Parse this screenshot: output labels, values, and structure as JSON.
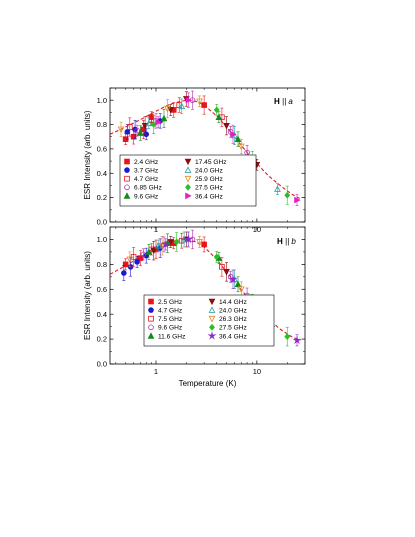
{
  "chart_data": [
    {
      "type": "scatter",
      "panel": "top",
      "annotation_bold": "H",
      "annotation_rest": " || a",
      "ylabel": "ESR Intensity (arb. units)",
      "xlabel": "",
      "xscale": "log",
      "xlim": [
        0.35,
        30
      ],
      "ylim": [
        0.0,
        1.1
      ],
      "yticks": [
        "0.0",
        "0.2",
        "0.4",
        "0.6",
        "0.8",
        "1.0"
      ],
      "ytick_values": [
        0.0,
        0.2,
        0.4,
        0.6,
        0.8,
        1.0
      ],
      "xticks": [
        "1",
        "10"
      ],
      "xtick_values": [
        1,
        10
      ],
      "fit_curve": {
        "style": "dashed",
        "color": "#d4202a",
        "x": [
          0.35,
          0.5,
          0.7,
          1.0,
          1.4,
          2.0,
          2.5,
          3.0,
          4.0,
          5.0,
          6.0,
          8.0,
          10.0,
          13.0,
          17.0,
          22.0,
          27.0
        ],
        "y": [
          0.72,
          0.78,
          0.84,
          0.91,
          0.97,
          1.0,
          0.99,
          0.96,
          0.87,
          0.78,
          0.7,
          0.57,
          0.48,
          0.38,
          0.3,
          0.23,
          0.19
        ]
      },
      "series": [
        {
          "name": "2.4 GHz",
          "color": "#e8141b",
          "marker": "square",
          "filled": true,
          "x": [
            0.5,
            0.6,
            0.75,
            0.9,
            1.5,
            3.0
          ],
          "y": [
            0.68,
            0.7,
            0.76,
            0.86,
            0.92,
            0.96
          ]
        },
        {
          "name": "3.7 GHz",
          "color": "#1a1ad6",
          "marker": "circle",
          "filled": true,
          "x": [
            0.52,
            0.62,
            0.8,
            1.1
          ],
          "y": [
            0.74,
            0.76,
            0.72,
            0.83
          ]
        },
        {
          "name": "4.7 GHz",
          "color": "#e8141b",
          "marker": "square",
          "filled": false,
          "x": [
            0.55,
            0.9,
            1.7,
            4.5
          ],
          "y": [
            0.78,
            0.84,
            0.96,
            0.86
          ]
        },
        {
          "name": "6.85 GHz",
          "color": "#b030b0",
          "marker": "circle",
          "filled": false,
          "x": [
            0.65,
            1.0,
            2.3,
            5.5,
            8.0
          ],
          "y": [
            0.75,
            0.83,
            1.0,
            0.74,
            0.57
          ]
        },
        {
          "name": "9.6 GHz",
          "color": "#138a1c",
          "marker": "triangle-up",
          "filled": true,
          "x": [
            0.7,
            1.2,
            4.2,
            6.5
          ],
          "y": [
            0.73,
            0.85,
            0.86,
            0.68
          ]
        },
        {
          "name": "17.45 GHz",
          "color": "#8b0f0f",
          "marker": "triangle-down",
          "filled": true,
          "x": [
            0.78,
            1.4,
            2.0,
            5.0,
            10.0
          ],
          "y": [
            0.79,
            0.92,
            1.01,
            0.79,
            0.47
          ]
        },
        {
          "name": "24.0 GHz",
          "color": "#22a0a0",
          "marker": "triangle-up",
          "filled": false,
          "x": [
            0.85,
            1.8,
            6.0,
            16.0
          ],
          "y": [
            0.81,
            0.95,
            0.71,
            0.27
          ]
        },
        {
          "name": "25.9 GHz",
          "color": "#e08820",
          "marker": "triangle-down",
          "filled": false,
          "x": [
            0.45,
            1.3,
            2.7,
            7.0
          ],
          "y": [
            0.76,
            0.93,
            0.99,
            0.62
          ]
        },
        {
          "name": "27.5 GHz",
          "color": "#28c028",
          "marker": "diamond",
          "filled": true,
          "x": [
            0.95,
            4.0,
            9.0,
            20.0
          ],
          "y": [
            0.8,
            0.92,
            0.52,
            0.22
          ]
        },
        {
          "name": "36.4 GHz",
          "color": "#e020c0",
          "marker": "triangle-right",
          "filled": true,
          "x": [
            1.05,
            2.1,
            5.8,
            25.0
          ],
          "y": [
            0.82,
            1.0,
            0.72,
            0.18
          ]
        }
      ],
      "legend_location": "lower-left"
    },
    {
      "type": "scatter",
      "panel": "bottom",
      "annotation_bold": "H",
      "annotation_rest": " || b",
      "ylabel": "ESR Intensity (arb. units)",
      "xlabel": "Temperature (K)",
      "xscale": "log",
      "xlim": [
        0.35,
        30
      ],
      "ylim": [
        0.0,
        1.1
      ],
      "yticks": [
        "0.0",
        "0.2",
        "0.4",
        "0.6",
        "0.8",
        "1.0"
      ],
      "ytick_values": [
        0.0,
        0.2,
        0.4,
        0.6,
        0.8,
        1.0
      ],
      "xticks": [
        "1",
        "10"
      ],
      "xtick_values": [
        1,
        10
      ],
      "fit_curve": {
        "style": "dashed",
        "color": "#d4202a",
        "x": [
          0.35,
          0.5,
          0.7,
          1.0,
          1.4,
          2.0,
          2.5,
          3.0,
          4.0,
          5.0,
          6.0,
          8.0,
          10.0,
          13.0,
          17.0,
          22.0,
          27.0
        ],
        "y": [
          0.72,
          0.79,
          0.86,
          0.94,
          0.99,
          1.0,
          0.98,
          0.94,
          0.84,
          0.74,
          0.66,
          0.54,
          0.45,
          0.36,
          0.28,
          0.22,
          0.19
        ]
      },
      "series": [
        {
          "name": "2.5 GHz",
          "color": "#e8141b",
          "marker": "square",
          "filled": true,
          "x": [
            0.5,
            0.7,
            1.0,
            1.5,
            3.0
          ],
          "y": [
            0.8,
            0.85,
            0.92,
            0.97,
            0.96
          ]
        },
        {
          "name": "4.7 GHz",
          "color": "#1a1ad6",
          "marker": "circle",
          "filled": true,
          "x": [
            0.48,
            0.56,
            0.65,
            0.8,
            1.1
          ],
          "y": [
            0.73,
            0.78,
            0.82,
            0.87,
            0.93
          ]
        },
        {
          "name": "7.5 GHz",
          "color": "#e8141b",
          "marker": "square",
          "filled": false,
          "x": [
            0.6,
            0.9,
            1.8,
            4.5
          ],
          "y": [
            0.86,
            0.92,
            0.99,
            0.78
          ]
        },
        {
          "name": "9.6 GHz",
          "color": "#b030b0",
          "marker": "circle",
          "filled": false,
          "x": [
            0.75,
            1.2,
            2.3,
            5.5,
            8.0
          ],
          "y": [
            0.88,
            0.96,
            1.0,
            0.7,
            0.55
          ]
        },
        {
          "name": "11.6 GHz",
          "color": "#138a1c",
          "marker": "triangle-up",
          "filled": true,
          "x": [
            0.85,
            1.3,
            4.2,
            6.5
          ],
          "y": [
            0.9,
            0.97,
            0.85,
            0.64
          ]
        },
        {
          "name": "14.4 GHz",
          "color": "#8b0f0f",
          "marker": "triangle-down",
          "filled": true,
          "x": [
            0.95,
            1.4,
            2.0,
            5.0,
            10.0
          ],
          "y": [
            0.91,
            0.98,
            1.0,
            0.74,
            0.45
          ]
        },
        {
          "name": "24.0 GHz",
          "color": "#22a0a0",
          "marker": "triangle-up",
          "filled": false,
          "x": [
            1.05,
            1.9,
            6.0,
            14.0
          ],
          "y": [
            0.95,
            1.0,
            0.68,
            0.32
          ]
        },
        {
          "name": "26.3 GHz",
          "color": "#e08820",
          "marker": "triangle-down",
          "filled": false,
          "x": [
            0.55,
            1.15,
            2.7,
            7.0,
            13.0
          ],
          "y": [
            0.84,
            0.95,
            0.98,
            0.6,
            0.33
          ]
        },
        {
          "name": "27.5 GHz",
          "color": "#28c028",
          "marker": "diamond",
          "filled": true,
          "x": [
            1.6,
            4.0,
            9.0,
            20.0
          ],
          "y": [
            0.98,
            0.86,
            0.5,
            0.22
          ]
        },
        {
          "name": "36.4 GHz",
          "color": "#8a2ad0",
          "marker": "star",
          "filled": true,
          "x": [
            1.25,
            2.1,
            5.8,
            25.0
          ],
          "y": [
            0.96,
            1.0,
            0.68,
            0.19
          ]
        }
      ],
      "legend_location": "lower-center"
    }
  ]
}
